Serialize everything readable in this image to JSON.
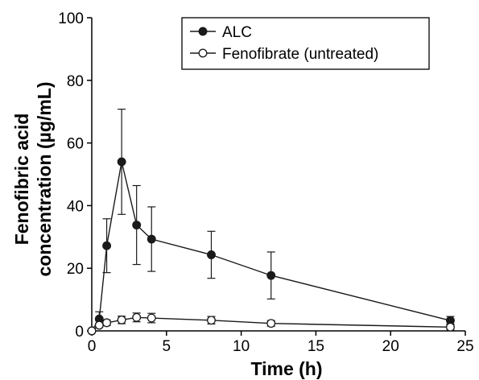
{
  "chart_data": {
    "type": "line",
    "xlabel": "Time (h)",
    "ylabel_lines": [
      "Fenofibric acid",
      "concentration (µg/mL)"
    ],
    "xlim": [
      0,
      25
    ],
    "ylim": [
      0,
      100
    ],
    "x_ticks": [
      "0",
      "5",
      "10",
      "15",
      "20",
      "25"
    ],
    "y_ticks": [
      "0",
      "20",
      "40",
      "60",
      "80",
      "100"
    ],
    "x_tick_values": [
      0,
      5,
      10,
      15,
      20,
      25
    ],
    "y_tick_values": [
      0,
      20,
      40,
      60,
      80,
      100
    ],
    "grid": false,
    "legend_position": "top-right",
    "series": [
      {
        "name": "ALC",
        "marker": "filled-circle",
        "color": "#1a1a1a",
        "x": [
          0,
          0.5,
          1,
          2,
          3,
          4,
          8,
          12,
          24
        ],
        "y": [
          0,
          3.8,
          27.2,
          54.0,
          33.8,
          29.3,
          24.3,
          17.7,
          3.3
        ],
        "error": [
          0,
          2.3,
          8.6,
          16.8,
          12.6,
          10.3,
          7.5,
          7.5,
          1.3
        ]
      },
      {
        "name": "Fenofibrate (untreated)",
        "marker": "open-circle",
        "color": "#1a1a1a",
        "x": [
          0,
          0.5,
          1,
          2,
          3,
          4,
          8,
          12,
          24
        ],
        "y": [
          0,
          1.8,
          2.6,
          3.5,
          4.3,
          4.1,
          3.4,
          2.4,
          1.2
        ],
        "error": [
          0,
          0.6,
          0.9,
          1.2,
          1.4,
          1.5,
          1.2,
          0.9,
          1.0
        ]
      }
    ]
  }
}
